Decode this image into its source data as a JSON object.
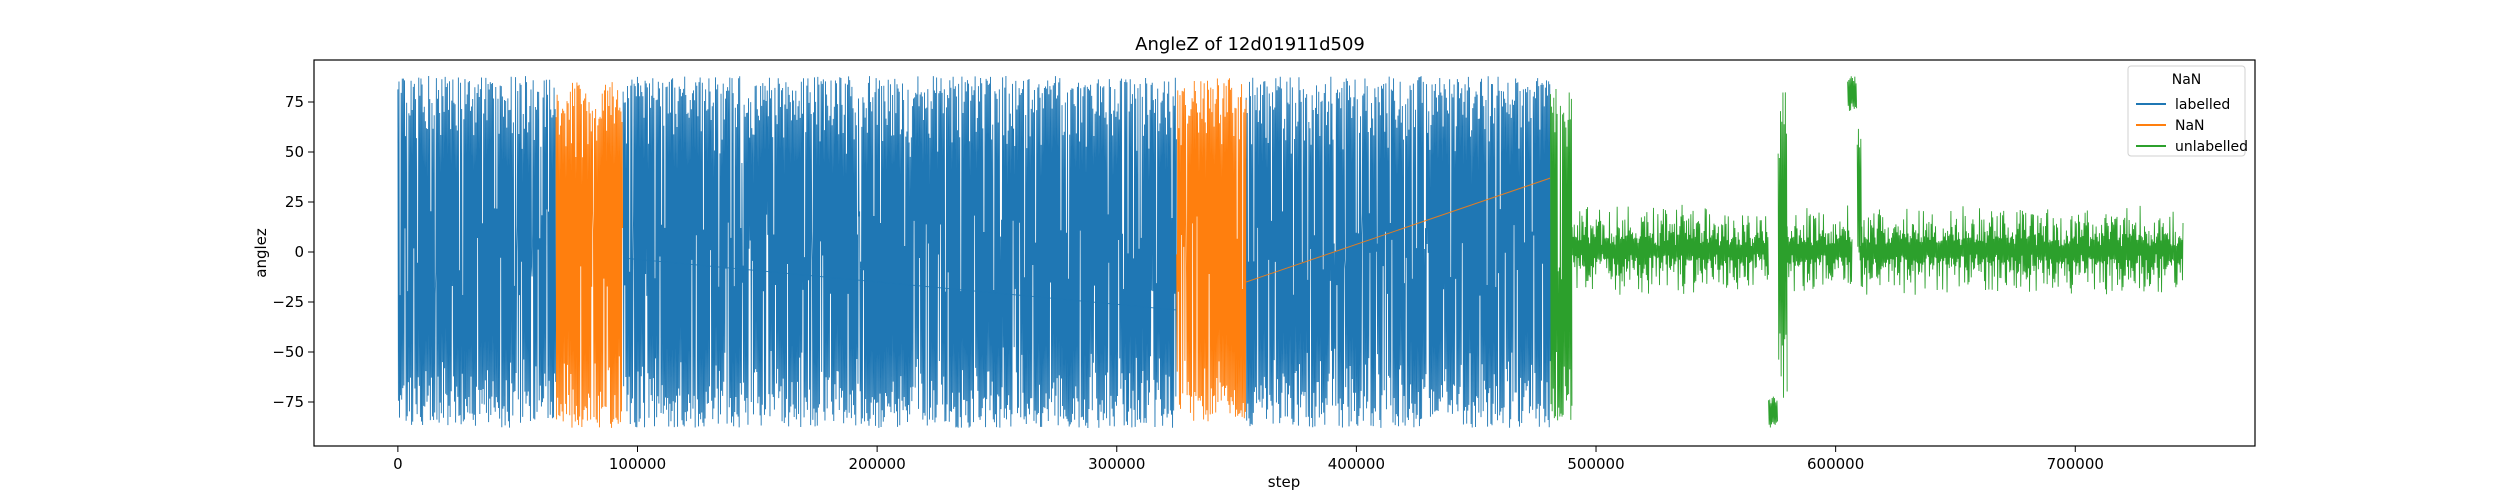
{
  "chart_data": {
    "type": "line",
    "title": "AngleZ of 12d01911d509",
    "xlabel": "step",
    "ylabel": "anglez",
    "xlim": [
      -35000,
      775000
    ],
    "ylim": [
      -97,
      96
    ],
    "x_ticks": [
      {
        "value": 0,
        "label": "0"
      },
      {
        "value": 100000,
        "label": "100000"
      },
      {
        "value": 200000,
        "label": "200000"
      },
      {
        "value": 300000,
        "label": "300000"
      },
      {
        "value": 400000,
        "label": "400000"
      },
      {
        "value": 500000,
        "label": "500000"
      },
      {
        "value": 600000,
        "label": "600000"
      },
      {
        "value": 700000,
        "label": "700000"
      }
    ],
    "y_ticks": [
      {
        "value": 75,
        "label": "75"
      },
      {
        "value": 50,
        "label": "50"
      },
      {
        "value": 25,
        "label": "25"
      },
      {
        "value": 0,
        "label": "0"
      },
      {
        "value": -25,
        "label": "−25"
      },
      {
        "value": -50,
        "label": "−50"
      },
      {
        "value": -75,
        "label": "−75"
      }
    ],
    "legend": {
      "title": "NaN",
      "placement": "top-right",
      "entries": [
        {
          "label": "labelled",
          "color": "#1f77b4"
        },
        {
          "label": "NaN",
          "color": "#ff7f0e"
        },
        {
          "label": "unlabelled",
          "color": "#2ca02c"
        }
      ]
    },
    "series": [
      {
        "name": "labelled",
        "color": "#1f77b4",
        "segments": [
          {
            "x_start": 0,
            "x_end": 66000,
            "y_min": -88,
            "y_max": 88
          },
          {
            "x_start": 94000,
            "x_end": 325000,
            "y_min": -88,
            "y_max": 88
          },
          {
            "x_start": 354000,
            "x_end": 481000,
            "y_min": -88,
            "y_max": 88
          }
        ],
        "connector": [
          [
            94000,
            -3
          ],
          [
            325000,
            -29
          ]
        ]
      },
      {
        "name": "NaN",
        "color": "#ff7f0e",
        "segments": [
          {
            "x_start": 66000,
            "x_end": 94000,
            "y_min": -88,
            "y_max": 85
          },
          {
            "x_start": 325000,
            "x_end": 354000,
            "y_min": -85,
            "y_max": 87
          }
        ],
        "connector": [
          [
            354000,
            -15
          ],
          [
            481000,
            37
          ]
        ]
      },
      {
        "name": "unlabelled",
        "color": "#2ca02c",
        "segments": [
          {
            "x_start": 481000,
            "x_end": 490000,
            "y_min": -85,
            "y_max": 85
          },
          {
            "x_start": 490000,
            "x_end": 572000,
            "y_min": -20,
            "y_max": 22
          },
          {
            "x_start": 577000,
            "x_end": 607000,
            "y_min": -20,
            "y_max": 22
          },
          {
            "x_start": 610000,
            "x_end": 745000,
            "y_min": -20,
            "y_max": 22
          }
        ],
        "spikes": [
          {
            "x_start": 572000,
            "x_end": 576000,
            "y_min": -88,
            "y_max": -72
          },
          {
            "x_start": 576000,
            "x_end": 580000,
            "y_min": -80,
            "y_max": 86
          },
          {
            "x_start": 605000,
            "x_end": 609000,
            "y_min": 70,
            "y_max": 88
          },
          {
            "x_start": 609000,
            "x_end": 611000,
            "y_min": -15,
            "y_max": 70
          }
        ]
      }
    ]
  }
}
